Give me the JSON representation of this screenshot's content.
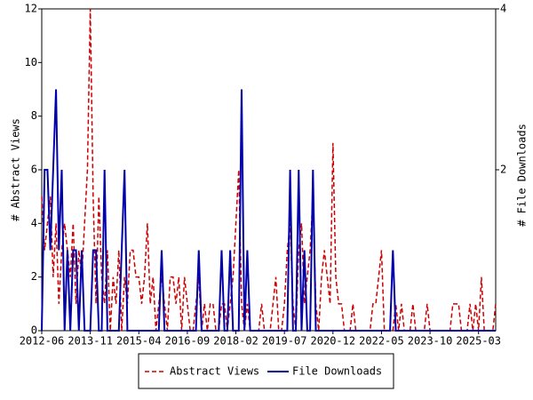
{
  "chart_data": {
    "type": "line",
    "x": [
      "2012-06",
      "2012-07",
      "2012-08",
      "2012-09",
      "2012-10",
      "2012-11",
      "2012-12",
      "2013-01",
      "2013-02",
      "2013-03",
      "2013-04",
      "2013-05",
      "2013-06",
      "2013-07",
      "2013-08",
      "2013-09",
      "2013-10",
      "2013-11",
      "2013-12",
      "2014-01",
      "2014-02",
      "2014-03",
      "2014-04",
      "2014-05",
      "2014-06",
      "2014-07",
      "2014-08",
      "2014-09",
      "2014-10",
      "2014-11",
      "2014-12",
      "2015-01",
      "2015-02",
      "2015-03",
      "2015-04",
      "2015-05",
      "2015-06",
      "2015-07",
      "2015-08",
      "2015-09",
      "2015-10",
      "2015-11",
      "2015-12",
      "2016-01",
      "2016-02",
      "2016-03",
      "2016-04",
      "2016-05",
      "2016-06",
      "2016-07",
      "2016-08",
      "2016-09",
      "2016-10",
      "2016-11",
      "2016-12",
      "2017-01",
      "2017-02",
      "2017-03",
      "2017-04",
      "2017-05",
      "2017-06",
      "2017-07",
      "2017-08",
      "2017-09",
      "2017-10",
      "2017-11",
      "2017-12",
      "2018-01",
      "2018-02",
      "2018-03",
      "2018-04",
      "2018-05",
      "2018-06",
      "2018-07",
      "2018-08",
      "2018-09",
      "2018-10",
      "2018-11",
      "2018-12",
      "2019-01",
      "2019-02",
      "2019-03",
      "2019-04",
      "2019-05",
      "2019-06",
      "2019-07",
      "2019-08",
      "2019-09",
      "2019-10",
      "2019-11",
      "2019-12",
      "2020-01",
      "2020-02",
      "2020-03",
      "2020-04",
      "2020-05",
      "2020-06",
      "2020-07",
      "2020-08",
      "2020-09",
      "2020-10",
      "2020-11",
      "2020-12",
      "2021-01",
      "2021-02",
      "2021-03",
      "2021-04",
      "2021-05",
      "2021-06",
      "2021-07",
      "2021-08",
      "2021-09",
      "2021-10",
      "2021-11",
      "2021-12",
      "2022-01",
      "2022-02",
      "2022-03",
      "2022-04",
      "2022-05",
      "2022-06",
      "2022-07",
      "2022-08",
      "2022-09",
      "2022-10",
      "2022-11",
      "2022-12",
      "2023-01",
      "2023-02",
      "2023-03",
      "2023-04",
      "2023-05",
      "2023-06",
      "2023-07",
      "2023-08",
      "2023-09",
      "2023-10",
      "2023-11",
      "2023-12",
      "2024-01",
      "2024-02",
      "2024-03",
      "2024-04",
      "2024-05",
      "2024-06",
      "2024-07",
      "2024-08",
      "2024-09",
      "2024-10",
      "2024-11",
      "2024-12",
      "2025-01",
      "2025-02",
      "2025-03",
      "2025-04",
      "2025-05",
      "2025-06",
      "2025-07",
      "2025-08",
      "2025-09"
    ],
    "series": [
      {
        "name": "Abstract Views",
        "color": "#cc0000",
        "dash": true,
        "values": [
          5,
          3,
          4,
          5,
          2,
          4,
          1,
          3,
          4,
          3,
          2,
          4,
          1,
          3,
          2,
          4,
          6,
          12,
          5,
          1,
          5,
          2,
          1,
          3,
          0,
          2,
          1,
          3,
          0,
          2,
          1,
          3,
          3,
          2,
          2,
          1,
          2,
          4,
          1,
          2,
          0,
          1,
          2,
          1,
          0,
          2,
          2,
          1,
          2,
          0,
          2,
          1,
          0,
          0,
          1,
          2,
          0,
          1,
          0,
          1,
          1,
          0,
          0,
          1,
          1,
          0,
          1,
          2,
          4,
          6,
          1,
          0,
          1,
          0,
          0,
          0,
          0,
          1,
          0,
          0,
          0,
          1,
          2,
          0,
          0,
          1,
          3,
          4,
          1,
          0,
          3,
          4,
          1,
          2,
          3,
          5,
          1,
          0,
          2,
          3,
          2,
          1,
          7,
          2,
          1,
          1,
          0,
          0,
          0,
          1,
          0,
          0,
          0,
          0,
          0,
          0,
          1,
          1,
          2,
          3,
          0,
          0,
          0,
          0,
          1,
          0,
          1,
          0,
          0,
          0,
          1,
          0,
          0,
          0,
          0,
          1,
          0,
          0,
          0,
          0,
          0,
          0,
          0,
          0,
          1,
          1,
          1,
          0,
          0,
          0,
          1,
          0,
          1,
          0,
          2,
          0,
          0,
          0,
          0,
          1
        ]
      },
      {
        "name": "File Downloads",
        "color": "#0000aa",
        "axis": "y2",
        "values": [
          0,
          2,
          2,
          1,
          2,
          3,
          1,
          2,
          0,
          1,
          0,
          1,
          1,
          0,
          1,
          0,
          0,
          0,
          1,
          1,
          0,
          0,
          2,
          0,
          0,
          0,
          0,
          0,
          1,
          2,
          0,
          0,
          0,
          0,
          0,
          0,
          0,
          0,
          0,
          0,
          0,
          0,
          1,
          0,
          0,
          0,
          0,
          0,
          0,
          0,
          0,
          0,
          0,
          0,
          0,
          1,
          0,
          0,
          0,
          0,
          0,
          0,
          0,
          1,
          0,
          0,
          1,
          0,
          0,
          0,
          3,
          0,
          1,
          0,
          0,
          0,
          0,
          0,
          0,
          0,
          0,
          0,
          0,
          0,
          0,
          0,
          0,
          2,
          0,
          0,
          2,
          0,
          1,
          0,
          0,
          2,
          0,
          0,
          0,
          0,
          0,
          0,
          0,
          0,
          0,
          0,
          0,
          0,
          0,
          0,
          0,
          0,
          0,
          0,
          0,
          0,
          0,
          0,
          0,
          0,
          0,
          0,
          0,
          1,
          0,
          0,
          0,
          0,
          0,
          0,
          0,
          0,
          0,
          0,
          0,
          0,
          0,
          0,
          0,
          0,
          0,
          0,
          0,
          0,
          0,
          0,
          0,
          0,
          0,
          0,
          0,
          0,
          0,
          0,
          0,
          0,
          0,
          0,
          0,
          0
        ]
      }
    ],
    "xlim": [
      "2012-06",
      "2025-09"
    ],
    "xticks": [
      "2012-06",
      "2013-11",
      "2015-04",
      "2016-09",
      "2018-02",
      "2019-07",
      "2020-12",
      "2022-05",
      "2023-10",
      "2025-03"
    ],
    "ylabel": "# Abstract Views",
    "ylim": [
      0,
      12
    ],
    "yticks": [
      0,
      2,
      4,
      6,
      8,
      10,
      12
    ],
    "y2label": "# File Downloads",
    "y2lim": [
      0,
      4
    ],
    "y2ticks": [
      2,
      4
    ],
    "legend": "bottom"
  }
}
